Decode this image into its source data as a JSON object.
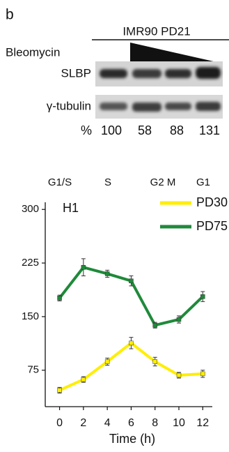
{
  "panel_label": "b",
  "blot": {
    "sample": "IMR90 PD21",
    "treatment": "Bleomycin",
    "rows": [
      "SLBP",
      "γ-tubulin"
    ],
    "quant_label": "%",
    "quant": [
      100,
      58,
      88,
      131
    ]
  },
  "chart_data": {
    "type": "line",
    "title": "H1",
    "phases": [
      "G1/S",
      "S",
      "G2 M",
      "G1"
    ],
    "x": [
      0,
      2,
      4,
      6,
      8,
      10,
      12
    ],
    "xlabel": "Time (h)",
    "xlim": [
      -1.2,
      12.8
    ],
    "xticks": [
      0,
      2,
      4,
      6,
      8,
      10,
      12
    ],
    "ylim": [
      24,
      310
    ],
    "yticks": [
      75,
      150,
      225,
      300
    ],
    "legend": "upper right",
    "series": [
      {
        "name": "PD30",
        "color": "#ffee00",
        "values": [
          47,
          62,
          87,
          113,
          87,
          68,
          70
        ],
        "errors": [
          4,
          4,
          5,
          8,
          6,
          4,
          5
        ]
      },
      {
        "name": "PD75",
        "color": "#1f8a3a",
        "values": [
          176,
          219,
          210,
          200,
          138,
          146,
          178
        ],
        "errors": [
          4,
          12,
          5,
          7,
          4,
          5,
          7
        ]
      }
    ]
  }
}
